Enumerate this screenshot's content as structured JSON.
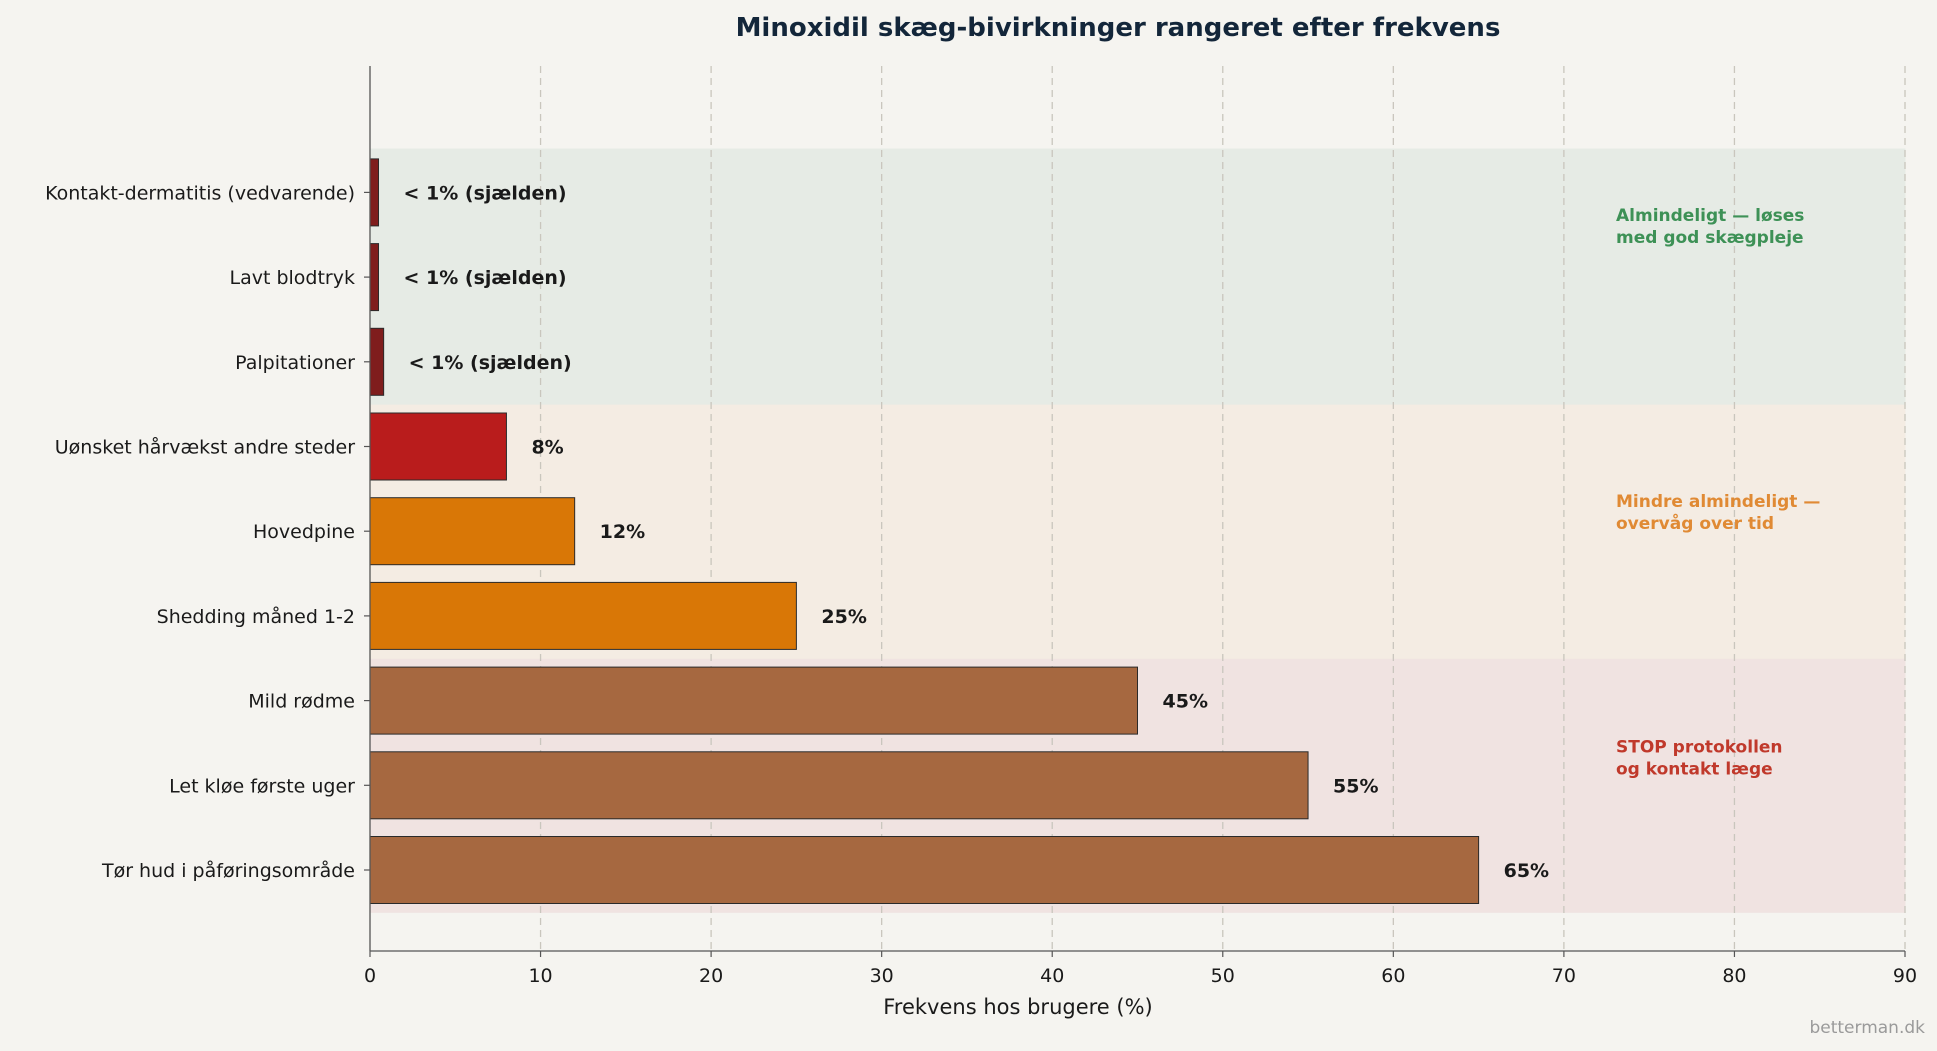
{
  "chart_data": {
    "type": "bar",
    "orientation": "horizontal",
    "title": "Minoxidil skæg-bivirkninger rangeret efter frekvens",
    "xlabel": "Frekvens hos brugere (%)",
    "ylabel": "",
    "xlim": [
      0,
      90
    ],
    "xticks": [
      "0",
      "10",
      "20",
      "30",
      "40",
      "50",
      "60",
      "70",
      "80",
      "90"
    ],
    "grid": "vertical dashed",
    "categories": [
      "Tør hud i påføringsområde",
      "Let kløe første uger",
      "Mild rødme",
      "Shedding måned 1-2",
      "Hovedpine",
      "Uønsket hårvækst andre steder",
      "Palpitationer",
      "Lavt blodtryk",
      "Kontakt-dermatitis (vedvarende)"
    ],
    "values": [
      65,
      55,
      45,
      25,
      12,
      8,
      0.8,
      0.5,
      0.5
    ],
    "value_labels": [
      "65%",
      "55%",
      "45%",
      "25%",
      "12%",
      "8%",
      "< 1% (sjælden)",
      "< 1% (sjælden)",
      "< 1% (sjælden)"
    ],
    "bar_colors": [
      "#a66840",
      "#a66840",
      "#a66840",
      "#d97706",
      "#d97706",
      "#b91c1c",
      "#7f1d1d",
      "#7f1d1d",
      "#7f1d1d"
    ],
    "zones": [
      {
        "label_lines": [
          "STOP protokollen",
          "og kontakt læge"
        ],
        "from_index": 0,
        "to_index": 2,
        "color": "#c0392b",
        "fill": "#f0e3e1"
      },
      {
        "label_lines": [
          "Mindre almindeligt —",
          "overvåg over tid"
        ],
        "from_index": 3,
        "to_index": 5,
        "color": "#e08a34",
        "fill": "#f4ece3"
      },
      {
        "label_lines": [
          "Almindeligt — løses",
          "med god skægpleje"
        ],
        "from_index": 6,
        "to_index": 8,
        "color": "#3d9156",
        "fill": "#e6ebe5"
      }
    ]
  },
  "watermark": "betterman.dk"
}
